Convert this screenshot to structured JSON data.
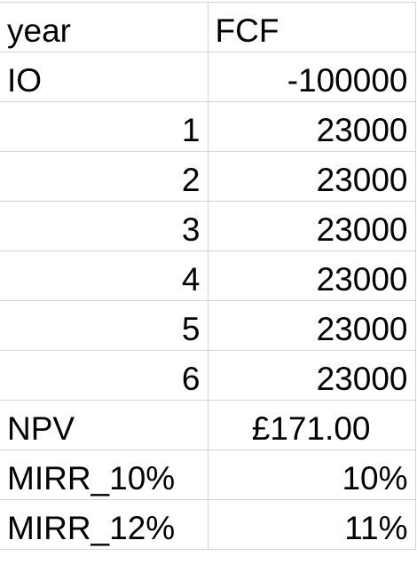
{
  "sheet": {
    "headers": {
      "col_a": "year",
      "col_b": "FCF"
    },
    "rows": [
      {
        "label": "IO",
        "value": "-100000"
      },
      {
        "label": "1",
        "value": "23000"
      },
      {
        "label": "2",
        "value": "23000"
      },
      {
        "label": "3",
        "value": "23000"
      },
      {
        "label": "4",
        "value": "23000"
      },
      {
        "label": "5",
        "value": "23000"
      },
      {
        "label": "6",
        "value": "23000"
      }
    ],
    "summary": [
      {
        "label": "NPV",
        "value": "£171.00"
      },
      {
        "label": "MIRR_10%",
        "value": "10%"
      },
      {
        "label": "MIRR_12%",
        "value": "11%"
      }
    ]
  }
}
